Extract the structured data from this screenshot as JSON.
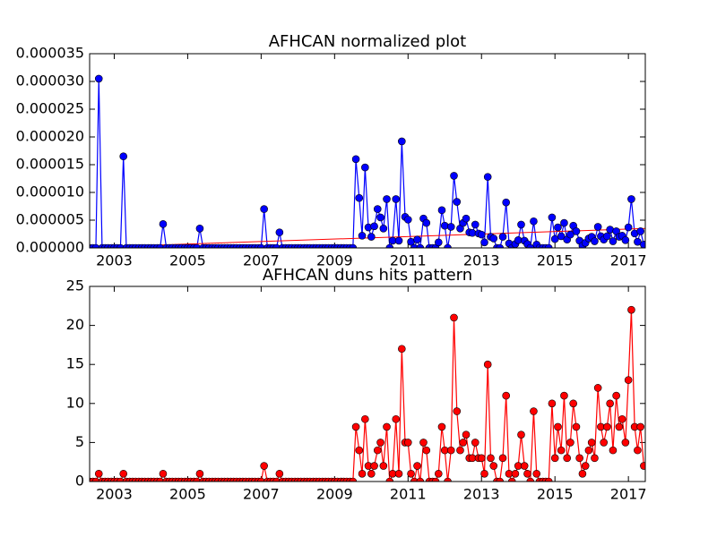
{
  "chart_data": [
    {
      "type": "line",
      "title": "AFHCAN normalized plot",
      "color": "#0000ff",
      "marker": "circle",
      "xlim": [
        2002.33,
        2017.46
      ],
      "xticks": [
        2003,
        2005,
        2007,
        2009,
        2011,
        2013,
        2015,
        2017
      ],
      "ylim": [
        0,
        3.5e-05
      ],
      "yticks": [
        {
          "value": 0,
          "label": "0.000000"
        },
        {
          "value": 5e-06,
          "label": "0.000005"
        },
        {
          "value": 1e-05,
          "label": "0.000010"
        },
        {
          "value": 1.5e-05,
          "label": "0.000015"
        },
        {
          "value": 2e-05,
          "label": "0.000020"
        },
        {
          "value": 2.5e-05,
          "label": "0.000025"
        },
        {
          "value": 3e-05,
          "label": "0.000030"
        },
        {
          "value": 3.5e-05,
          "label": "0.000035"
        }
      ],
      "x": [
        2002.33,
        2002.42,
        2002.5,
        2002.58,
        2002.67,
        2002.75,
        2002.83,
        2002.92,
        2003.0,
        2003.08,
        2003.17,
        2003.25,
        2003.33,
        2003.42,
        2003.5,
        2003.58,
        2003.67,
        2003.75,
        2003.83,
        2003.92,
        2004.0,
        2004.08,
        2004.17,
        2004.25,
        2004.33,
        2004.42,
        2004.5,
        2004.58,
        2004.67,
        2004.75,
        2004.83,
        2004.92,
        2005.0,
        2005.08,
        2005.17,
        2005.25,
        2005.33,
        2005.42,
        2005.5,
        2005.58,
        2005.67,
        2005.75,
        2005.83,
        2005.92,
        2006.0,
        2006.08,
        2006.17,
        2006.25,
        2006.33,
        2006.42,
        2006.5,
        2006.58,
        2006.67,
        2006.75,
        2006.83,
        2006.92,
        2007.0,
        2007.08,
        2007.17,
        2007.25,
        2007.33,
        2007.42,
        2007.5,
        2007.58,
        2007.67,
        2007.75,
        2007.83,
        2007.92,
        2008.0,
        2008.08,
        2008.17,
        2008.25,
        2008.33,
        2008.42,
        2008.5,
        2008.58,
        2008.67,
        2008.75,
        2008.83,
        2008.92,
        2009.0,
        2009.08,
        2009.17,
        2009.25,
        2009.33,
        2009.42,
        2009.5,
        2009.58,
        2009.67,
        2009.75,
        2009.83,
        2009.92,
        2010.0,
        2010.08,
        2010.17,
        2010.25,
        2010.33,
        2010.42,
        2010.5,
        2010.58,
        2010.67,
        2010.75,
        2010.83,
        2010.92,
        2011.0,
        2011.08,
        2011.17,
        2011.25,
        2011.33,
        2011.42,
        2011.5,
        2011.58,
        2011.67,
        2011.75,
        2011.83,
        2011.92,
        2012.0,
        2012.08,
        2012.17,
        2012.25,
        2012.33,
        2012.42,
        2012.5,
        2012.58,
        2012.67,
        2012.75,
        2012.83,
        2012.92,
        2013.0,
        2013.08,
        2013.17,
        2013.25,
        2013.33,
        2013.42,
        2013.5,
        2013.58,
        2013.67,
        2013.75,
        2013.83,
        2013.92,
        2014.0,
        2014.08,
        2014.17,
        2014.25,
        2014.33,
        2014.42,
        2014.5,
        2014.58,
        2014.67,
        2014.75,
        2014.83,
        2014.92,
        2015.0,
        2015.08,
        2015.17,
        2015.25,
        2015.33,
        2015.42,
        2015.5,
        2015.58,
        2015.67,
        2015.75,
        2015.83,
        2015.92,
        2016.0,
        2016.08,
        2016.17,
        2016.25,
        2016.33,
        2016.42,
        2016.5,
        2016.58,
        2016.67,
        2016.75,
        2016.83,
        2016.92,
        2017.0,
        2017.08,
        2017.17,
        2017.25,
        2017.33,
        2017.42
      ],
      "values": [
        0,
        0,
        0,
        3.05e-05,
        0,
        0,
        0,
        0,
        0,
        0,
        0,
        1.65e-05,
        0,
        0,
        0,
        0,
        0,
        0,
        0,
        0,
        0,
        0,
        0,
        0,
        4.3e-06,
        0,
        0,
        0,
        0,
        0,
        0,
        0,
        0,
        0,
        0,
        0,
        3.5e-06,
        0,
        0,
        0,
        0,
        0,
        0,
        0,
        0,
        0,
        0,
        0,
        0,
        0,
        0,
        0,
        0,
        0,
        0,
        0,
        0,
        7e-06,
        0,
        0,
        0,
        0,
        2.8e-06,
        0,
        0,
        0,
        0,
        0,
        0,
        0,
        0,
        0,
        0,
        0,
        0,
        0,
        0,
        0,
        0,
        0,
        0,
        0,
        0,
        0,
        0,
        0,
        0,
        1.6e-05,
        9e-06,
        2.2e-06,
        1.45e-05,
        3.7e-06,
        2e-06,
        3.9e-06,
        7e-06,
        5.5e-06,
        3.5e-06,
        8.8e-06,
        0,
        1.3e-06,
        8.8e-06,
        1.3e-06,
        1.92e-05,
        5.6e-06,
        5.1e-06,
        1.1e-06,
        0,
        1.5e-06,
        0,
        5.3e-06,
        4.5e-06,
        0,
        0,
        0,
        1e-06,
        6.8e-06,
        4e-06,
        0,
        3.8e-06,
        1.3e-05,
        8.3e-06,
        3.5e-06,
        4.5e-06,
        5.3e-06,
        2.8e-06,
        2.7e-06,
        4.2e-06,
        2.6e-06,
        2.4e-06,
        1e-06,
        1.28e-05,
        2e-06,
        1.7e-06,
        0,
        0,
        2e-06,
        8.2e-06,
        8e-07,
        0,
        7e-07,
        1.4e-06,
        4.2e-06,
        1.3e-06,
        7e-07,
        0,
        4.8e-06,
        6e-07,
        0,
        0,
        0,
        0,
        5.5e-06,
        1.6e-06,
        3.7e-06,
        2.1e-06,
        4.5e-06,
        1.5e-06,
        2.4e-06,
        4e-06,
        3e-06,
        1.3e-06,
        4e-07,
        9e-07,
        1.7e-06,
        2e-06,
        1.2e-06,
        3.8e-06,
        2.1e-06,
        1.5e-06,
        2.1e-06,
        3.3e-06,
        1.2e-06,
        3e-06,
        2e-06,
        2.2e-06,
        1.4e-06,
        3.7e-06,
        8.8e-06,
        2.6e-06,
        1.1e-06,
        3e-06,
        6e-07
      ],
      "trend": {
        "color": "#ff0000",
        "x": [
          2002.33,
          2017.46
        ],
        "values": [
          1e-07,
          3.5e-06
        ]
      }
    },
    {
      "type": "line",
      "title": "AFHCAN duns hits pattern",
      "color": "#ff0000",
      "marker": "circle",
      "xlim": [
        2002.33,
        2017.46
      ],
      "xticks": [
        2003,
        2005,
        2007,
        2009,
        2011,
        2013,
        2015,
        2017
      ],
      "ylim": [
        0,
        25
      ],
      "yticks": [
        0,
        5,
        10,
        15,
        20,
        25
      ],
      "x": [
        2002.33,
        2002.42,
        2002.5,
        2002.58,
        2002.67,
        2002.75,
        2002.83,
        2002.92,
        2003.0,
        2003.08,
        2003.17,
        2003.25,
        2003.33,
        2003.42,
        2003.5,
        2003.58,
        2003.67,
        2003.75,
        2003.83,
        2003.92,
        2004.0,
        2004.08,
        2004.17,
        2004.25,
        2004.33,
        2004.42,
        2004.5,
        2004.58,
        2004.67,
        2004.75,
        2004.83,
        2004.92,
        2005.0,
        2005.08,
        2005.17,
        2005.25,
        2005.33,
        2005.42,
        2005.5,
        2005.58,
        2005.67,
        2005.75,
        2005.83,
        2005.92,
        2006.0,
        2006.08,
        2006.17,
        2006.25,
        2006.33,
        2006.42,
        2006.5,
        2006.58,
        2006.67,
        2006.75,
        2006.83,
        2006.92,
        2007.0,
        2007.08,
        2007.17,
        2007.25,
        2007.33,
        2007.42,
        2007.5,
        2007.58,
        2007.67,
        2007.75,
        2007.83,
        2007.92,
        2008.0,
        2008.08,
        2008.17,
        2008.25,
        2008.33,
        2008.42,
        2008.5,
        2008.58,
        2008.67,
        2008.75,
        2008.83,
        2008.92,
        2009.0,
        2009.08,
        2009.17,
        2009.25,
        2009.33,
        2009.42,
        2009.5,
        2009.58,
        2009.67,
        2009.75,
        2009.83,
        2009.92,
        2010.0,
        2010.08,
        2010.17,
        2010.25,
        2010.33,
        2010.42,
        2010.5,
        2010.58,
        2010.67,
        2010.75,
        2010.83,
        2010.92,
        2011.0,
        2011.08,
        2011.17,
        2011.25,
        2011.33,
        2011.42,
        2011.5,
        2011.58,
        2011.67,
        2011.75,
        2011.83,
        2011.92,
        2012.0,
        2012.08,
        2012.17,
        2012.25,
        2012.33,
        2012.42,
        2012.5,
        2012.58,
        2012.67,
        2012.75,
        2012.83,
        2012.92,
        2013.0,
        2013.08,
        2013.17,
        2013.25,
        2013.33,
        2013.42,
        2013.5,
        2013.58,
        2013.67,
        2013.75,
        2013.83,
        2013.92,
        2014.0,
        2014.08,
        2014.17,
        2014.25,
        2014.33,
        2014.42,
        2014.5,
        2014.58,
        2014.67,
        2014.75,
        2014.83,
        2014.92,
        2015.0,
        2015.08,
        2015.17,
        2015.25,
        2015.33,
        2015.42,
        2015.5,
        2015.58,
        2015.67,
        2015.75,
        2015.83,
        2015.92,
        2016.0,
        2016.08,
        2016.17,
        2016.25,
        2016.33,
        2016.42,
        2016.5,
        2016.58,
        2016.67,
        2016.75,
        2016.83,
        2016.92,
        2017.0,
        2017.08,
        2017.17,
        2017.25,
        2017.33,
        2017.42
      ],
      "values": [
        0,
        0,
        0,
        1,
        0,
        0,
        0,
        0,
        0,
        0,
        0,
        1,
        0,
        0,
        0,
        0,
        0,
        0,
        0,
        0,
        0,
        0,
        0,
        0,
        1,
        0,
        0,
        0,
        0,
        0,
        0,
        0,
        0,
        0,
        0,
        0,
        1,
        0,
        0,
        0,
        0,
        0,
        0,
        0,
        0,
        0,
        0,
        0,
        0,
        0,
        0,
        0,
        0,
        0,
        0,
        0,
        0,
        2,
        0,
        0,
        0,
        0,
        1,
        0,
        0,
        0,
        0,
        0,
        0,
        0,
        0,
        0,
        0,
        0,
        0,
        0,
        0,
        0,
        0,
        0,
        0,
        0,
        0,
        0,
        0,
        0,
        0,
        7,
        4,
        1,
        8,
        2,
        1,
        2,
        4,
        5,
        2,
        7,
        0,
        1,
        8,
        1,
        17,
        5,
        5,
        1,
        0,
        2,
        0,
        5,
        4,
        0,
        0,
        0,
        1,
        7,
        4,
        0,
        4,
        21,
        9,
        4,
        5,
        6,
        3,
        3,
        5,
        3,
        3,
        1,
        15,
        3,
        2,
        0,
        0,
        3,
        11,
        1,
        0,
        1,
        2,
        6,
        2,
        1,
        0,
        9,
        1,
        0,
        0,
        0,
        0,
        10,
        3,
        7,
        4,
        11,
        3,
        5,
        10,
        7,
        3,
        1,
        2,
        4,
        5,
        3,
        12,
        7,
        5,
        7,
        10,
        4,
        11,
        7,
        8,
        5,
        13,
        22,
        7,
        4,
        7,
        2
      ]
    }
  ]
}
